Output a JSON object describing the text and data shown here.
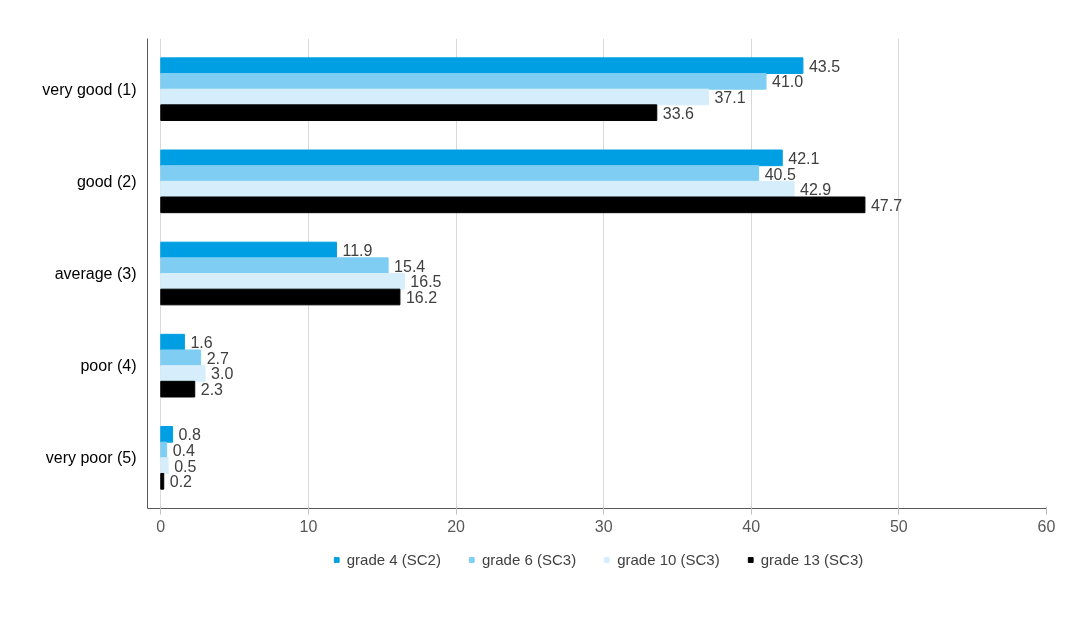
{
  "chart_data": {
    "type": "bar",
    "orientation": "horizontal",
    "categories": [
      "very good (1)",
      "good (2)",
      "average (3)",
      "poor (4)",
      "very poor (5)"
    ],
    "series": [
      {
        "name": "grade 4 (SC2)",
        "color": "#009fe3",
        "values": [
          43.5,
          42.1,
          11.9,
          1.6,
          0.8
        ],
        "value_labels": [
          "43.5",
          "42.1",
          "11.9",
          "1.6",
          "0.8"
        ]
      },
      {
        "name": "grade 6 (SC3)",
        "color": "#7fcdf3",
        "values": [
          41.0,
          40.5,
          15.4,
          2.7,
          0.4
        ],
        "value_labels": [
          "41.0",
          "40.5",
          "15.4",
          "2.7",
          "0.4"
        ]
      },
      {
        "name": "grade 10 (SC3)",
        "color": "#d6eefb",
        "values": [
          37.1,
          42.9,
          16.5,
          3.0,
          0.5
        ],
        "value_labels": [
          "37.1",
          "42.9",
          "16.5",
          "3.0",
          "0.5"
        ]
      },
      {
        "name": "grade 13 (SC3)",
        "color": "#000000",
        "values": [
          33.6,
          47.7,
          16.2,
          2.3,
          0.2
        ],
        "value_labels": [
          "33.6",
          "47.7",
          "16.2",
          "2.3",
          "0.2"
        ]
      }
    ],
    "xlim": [
      -0.9,
      60
    ],
    "xticks": [
      0,
      10,
      20,
      30,
      40,
      50,
      60
    ],
    "grid": "x",
    "legend": "bottom"
  }
}
